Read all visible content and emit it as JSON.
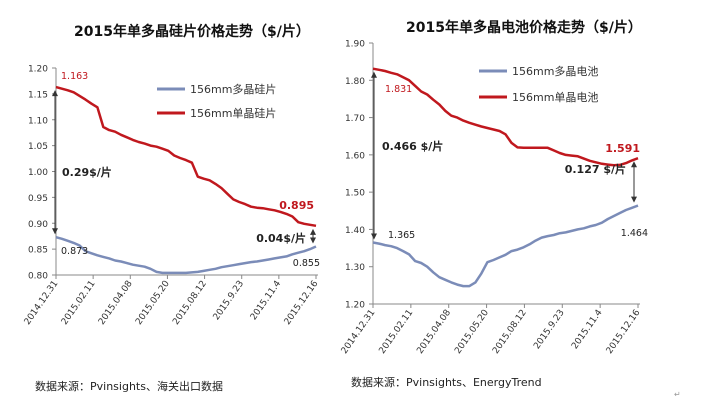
{
  "chart_data": [
    {
      "type": "line",
      "title": "2015年单多晶硅片价格走势（$/片）",
      "x_ticks": [
        "2014.12.31",
        "2015.02.11",
        "2015.04.08",
        "2015.05.20",
        "2015.08.12",
        "2015.9.23",
        "2015.11.4",
        "2015.12.16"
      ],
      "ylim": [
        0.8,
        1.2
      ],
      "y_ticks": [
        "0.80",
        "0.85",
        "0.90",
        "0.95",
        "1.00",
        "1.05",
        "1.10",
        "1.15",
        "1.20"
      ],
      "grid": false,
      "legend": "top-right",
      "series": [
        {
          "name": "156mm多晶硅片",
          "color": "#7b8cb8",
          "values": [
            0.873,
            0.87,
            0.866,
            0.862,
            0.857,
            0.846,
            0.842,
            0.838,
            0.835,
            0.832,
            0.828,
            0.826,
            0.823,
            0.82,
            0.818,
            0.816,
            0.812,
            0.806,
            0.804,
            0.804,
            0.804,
            0.804,
            0.804,
            0.805,
            0.806,
            0.808,
            0.81,
            0.812,
            0.815,
            0.817,
            0.819,
            0.821,
            0.823,
            0.825,
            0.826,
            0.828,
            0.83,
            0.832,
            0.834,
            0.836,
            0.84,
            0.843,
            0.846,
            0.85,
            0.855
          ]
        },
        {
          "name": "156mm单晶硅片",
          "color": "#c0181e",
          "values": [
            1.163,
            1.16,
            1.157,
            1.153,
            1.146,
            1.139,
            1.131,
            1.124,
            1.086,
            1.08,
            1.077,
            1.071,
            1.066,
            1.061,
            1.057,
            1.054,
            1.05,
            1.048,
            1.044,
            1.04,
            1.031,
            1.026,
            1.022,
            1.017,
            0.99,
            0.986,
            0.983,
            0.976,
            0.968,
            0.957,
            0.946,
            0.941,
            0.937,
            0.932,
            0.93,
            0.929,
            0.927,
            0.925,
            0.922,
            0.918,
            0.913,
            0.902,
            0.899,
            0.897,
            0.895
          ]
        }
      ],
      "annotations": {
        "start_mono": "1.163",
        "start_poly": "0.873",
        "end_mono": "0.895",
        "end_poly": "0.855",
        "start_gap": "0.29$/片",
        "end_gap": "0.04$/片"
      },
      "source": "数据来源：Pvinsights、海关出口数据"
    },
    {
      "type": "line",
      "title": "2015年单多晶电池价格走势（$/片）",
      "x_ticks": [
        "2014.12.31",
        "2015.02.11",
        "2015.04.08",
        "2015.05.20",
        "2015.08.12",
        "2015.9.23",
        "2015.11.4",
        "2015.12.16"
      ],
      "ylim": [
        1.2,
        1.9
      ],
      "y_ticks": [
        "1.20",
        "1.30",
        "1.40",
        "1.50",
        "1.60",
        "1.70",
        "1.80",
        "1.90"
      ],
      "grid": false,
      "legend": "top-right",
      "series": [
        {
          "name": "156mm多晶电池",
          "color": "#7b8cb8",
          "values": [
            1.365,
            1.362,
            1.358,
            1.355,
            1.35,
            1.342,
            1.333,
            1.315,
            1.31,
            1.3,
            1.285,
            1.272,
            1.265,
            1.258,
            1.252,
            1.248,
            1.248,
            1.258,
            1.282,
            1.312,
            1.318,
            1.325,
            1.332,
            1.342,
            1.346,
            1.352,
            1.36,
            1.37,
            1.378,
            1.382,
            1.385,
            1.39,
            1.392,
            1.396,
            1.4,
            1.403,
            1.408,
            1.412,
            1.418,
            1.428,
            1.436,
            1.444,
            1.452,
            1.458,
            1.464
          ]
        },
        {
          "name": "156mm单晶电池",
          "color": "#c0181e",
          "values": [
            1.831,
            1.828,
            1.825,
            1.82,
            1.816,
            1.808,
            1.8,
            1.785,
            1.77,
            1.762,
            1.748,
            1.735,
            1.718,
            1.705,
            1.7,
            1.692,
            1.686,
            1.681,
            1.676,
            1.672,
            1.668,
            1.664,
            1.655,
            1.632,
            1.62,
            1.619,
            1.619,
            1.619,
            1.619,
            1.619,
            1.612,
            1.605,
            1.6,
            1.598,
            1.596,
            1.59,
            1.584,
            1.58,
            1.576,
            1.574,
            1.572,
            1.573,
            1.578,
            1.585,
            1.591
          ]
        }
      ],
      "annotations": {
        "start_mono": "1.831",
        "start_poly": "1.365",
        "end_mono": "1.591",
        "end_poly": "1.464",
        "start_gap": "0.466 $/片",
        "end_gap": "0.127 $/片"
      },
      "source": "数据来源：Pvinsights、EnergyTrend"
    }
  ],
  "colors": {
    "mono": "#c0181e",
    "poly": "#7b8cb8",
    "axis": "#888888",
    "text": "#222222"
  }
}
